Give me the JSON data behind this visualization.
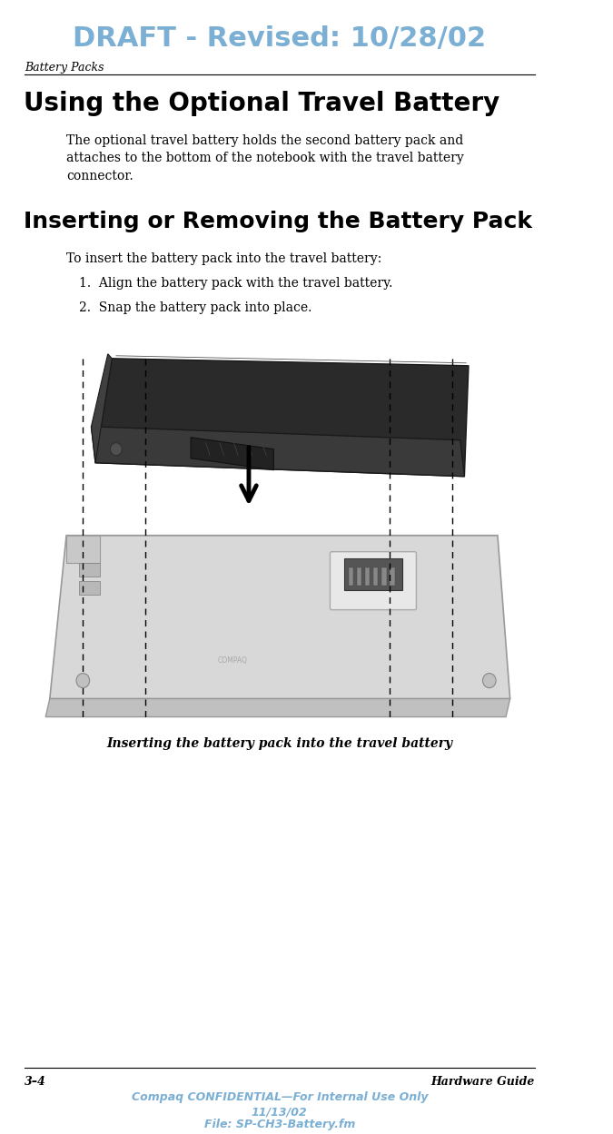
{
  "header_text": "DRAFT - Revised: 10/28/02",
  "header_color": "#7bafd4",
  "section_label": "Battery Packs",
  "title1": "Using the Optional Travel Battery",
  "body1": "The optional travel battery holds the second battery pack and\nattaches to the bottom of the notebook with the travel battery\nconnector.",
  "title2": "Inserting or Removing the Battery Pack",
  "intro_text": "To insert the battery pack into the travel battery:",
  "step1": "1.  Align the battery pack with the travel battery.",
  "step2": "2.  Snap the battery pack into place.",
  "caption": "Inserting the battery pack into the travel battery",
  "footer_left": "3–4",
  "footer_right": "Hardware Guide",
  "footer_center1": "Compaq CONFIDENTIAL—For Internal Use Only",
  "footer_center2": "11/13/02",
  "footer_center3": "File: SP-CH3-Battery.fm",
  "bg_color": "#ffffff",
  "text_color": "#000000",
  "footer_confidential_color": "#7bafd4"
}
